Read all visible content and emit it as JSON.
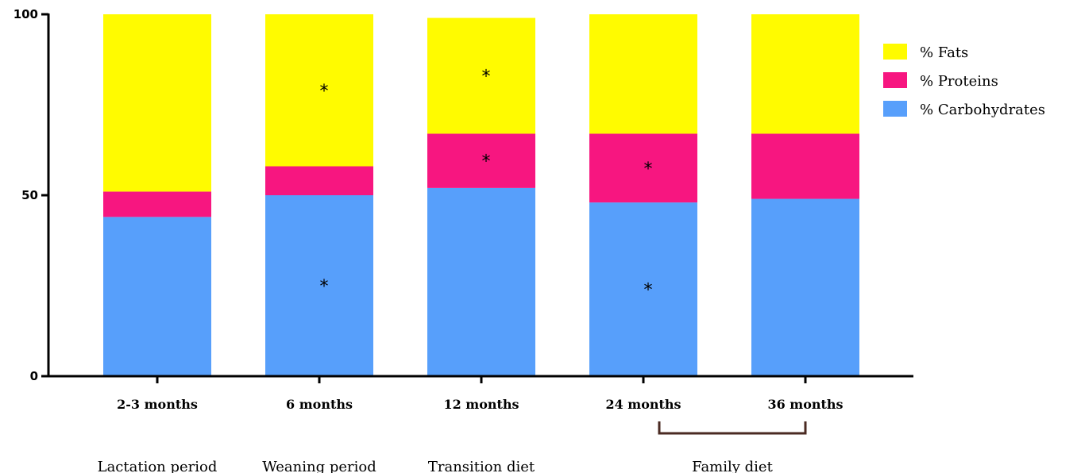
{
  "chart_data": {
    "type": "bar",
    "stacked": true,
    "categories": [
      "2-3 months",
      "6 months",
      "12 months",
      "24 months",
      "36 months"
    ],
    "series": [
      {
        "name": "% Carbohydrates",
        "color": "#579ffb",
        "values": [
          44,
          50,
          52,
          48,
          49
        ]
      },
      {
        "name": "% Proteins",
        "color": "#f71680",
        "values": [
          7,
          8,
          15,
          19,
          18
        ]
      },
      {
        "name": "% Fats",
        "color": "#fffb00",
        "values": [
          49,
          42,
          32,
          33,
          33
        ]
      }
    ],
    "yticks": [
      "0",
      "50",
      "100"
    ],
    "ylim": [
      0,
      100
    ],
    "grid": false,
    "legend_position": "top-right",
    "legend_order": [
      "% Fats",
      "% Proteins",
      "% Carbohydrates"
    ],
    "significance": [
      {
        "category": "6 months",
        "series": "% Fats",
        "label": "*"
      },
      {
        "category": "6 months",
        "series": "% Carbohydrates",
        "label": "*"
      },
      {
        "category": "12 months",
        "series": "% Fats",
        "label": "*"
      },
      {
        "category": "12 months",
        "series": "% Proteins",
        "label": "*"
      },
      {
        "category": "24 months",
        "series": "% Proteins",
        "label": "*"
      },
      {
        "category": "24 months",
        "series": "% Carbohydrates",
        "label": "*"
      }
    ],
    "periods": [
      {
        "label": "Lactation period",
        "categories": [
          "2-3 months"
        ]
      },
      {
        "label": "Weaning period",
        "categories": [
          "6 months"
        ]
      },
      {
        "label": "Transition diet",
        "categories": [
          "12 months"
        ]
      },
      {
        "label": "Family diet",
        "categories": [
          "24 months",
          "36 months"
        ]
      }
    ]
  }
}
